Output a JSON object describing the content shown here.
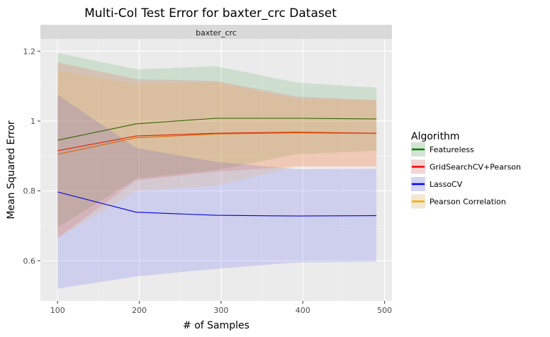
{
  "chart_data": {
    "type": "line",
    "title": "Multi-Col Test Error for baxter_crc Dataset",
    "facet_label": "baxter_crc",
    "xlabel": "# of Samples",
    "ylabel": "Mean Squared Error",
    "xlim": [
      79,
      509
    ],
    "ylim": [
      0.485,
      1.235
    ],
    "xticks": [
      100,
      200,
      300,
      400,
      500
    ],
    "xtick_labels": [
      "100",
      "200",
      "300",
      "400",
      "500"
    ],
    "yticks": [
      0.6,
      0.8,
      1.0,
      1.2
    ],
    "ytick_labels": [
      "0.6",
      "0.8",
      "1",
      "1.2"
    ],
    "grid": true,
    "legend_title": "Algorithm",
    "legend_position": "right",
    "series": [
      {
        "name": "Featureless",
        "color": "#008000",
        "line_color": "#336600",
        "x": [
          100,
          196,
          294,
          393,
          490
        ],
        "values": [
          0.945,
          0.992,
          1.008,
          1.008,
          1.006
        ],
        "lower": [
          0.695,
          0.835,
          0.86,
          0.905,
          0.915
        ],
        "upper": [
          1.195,
          1.148,
          1.157,
          1.11,
          1.096
        ]
      },
      {
        "name": "GridSearchCV+Pearson",
        "color": "#ff0000",
        "line_color": "#dd2200",
        "x": [
          100,
          196,
          294,
          393,
          490
        ],
        "values": [
          0.915,
          0.957,
          0.965,
          0.968,
          0.965
        ],
        "lower": [
          0.665,
          0.83,
          0.855,
          0.87,
          0.87
        ],
        "upper": [
          1.168,
          1.12,
          1.115,
          1.07,
          1.06
        ]
      },
      {
        "name": "LassoCV",
        "color": "#0000ff",
        "line_color": "#0000dd",
        "x": [
          100,
          196,
          294,
          393,
          490
        ],
        "values": [
          0.797,
          0.739,
          0.73,
          0.728,
          0.729
        ],
        "lower": [
          0.52,
          0.555,
          0.577,
          0.595,
          0.597
        ],
        "upper": [
          1.075,
          0.923,
          0.883,
          0.862,
          0.863
        ]
      },
      {
        "name": "Pearson Correlation",
        "color": "#ffa500",
        "line_color": "#dd6600",
        "x": [
          100,
          196,
          294,
          393,
          490
        ],
        "values": [
          0.905,
          0.952,
          0.963,
          0.966,
          0.964
        ],
        "lower": [
          0.665,
          0.8,
          0.815,
          0.87,
          0.87
        ],
        "upper": [
          1.145,
          1.105,
          1.11,
          1.062,
          1.058
        ]
      }
    ]
  }
}
